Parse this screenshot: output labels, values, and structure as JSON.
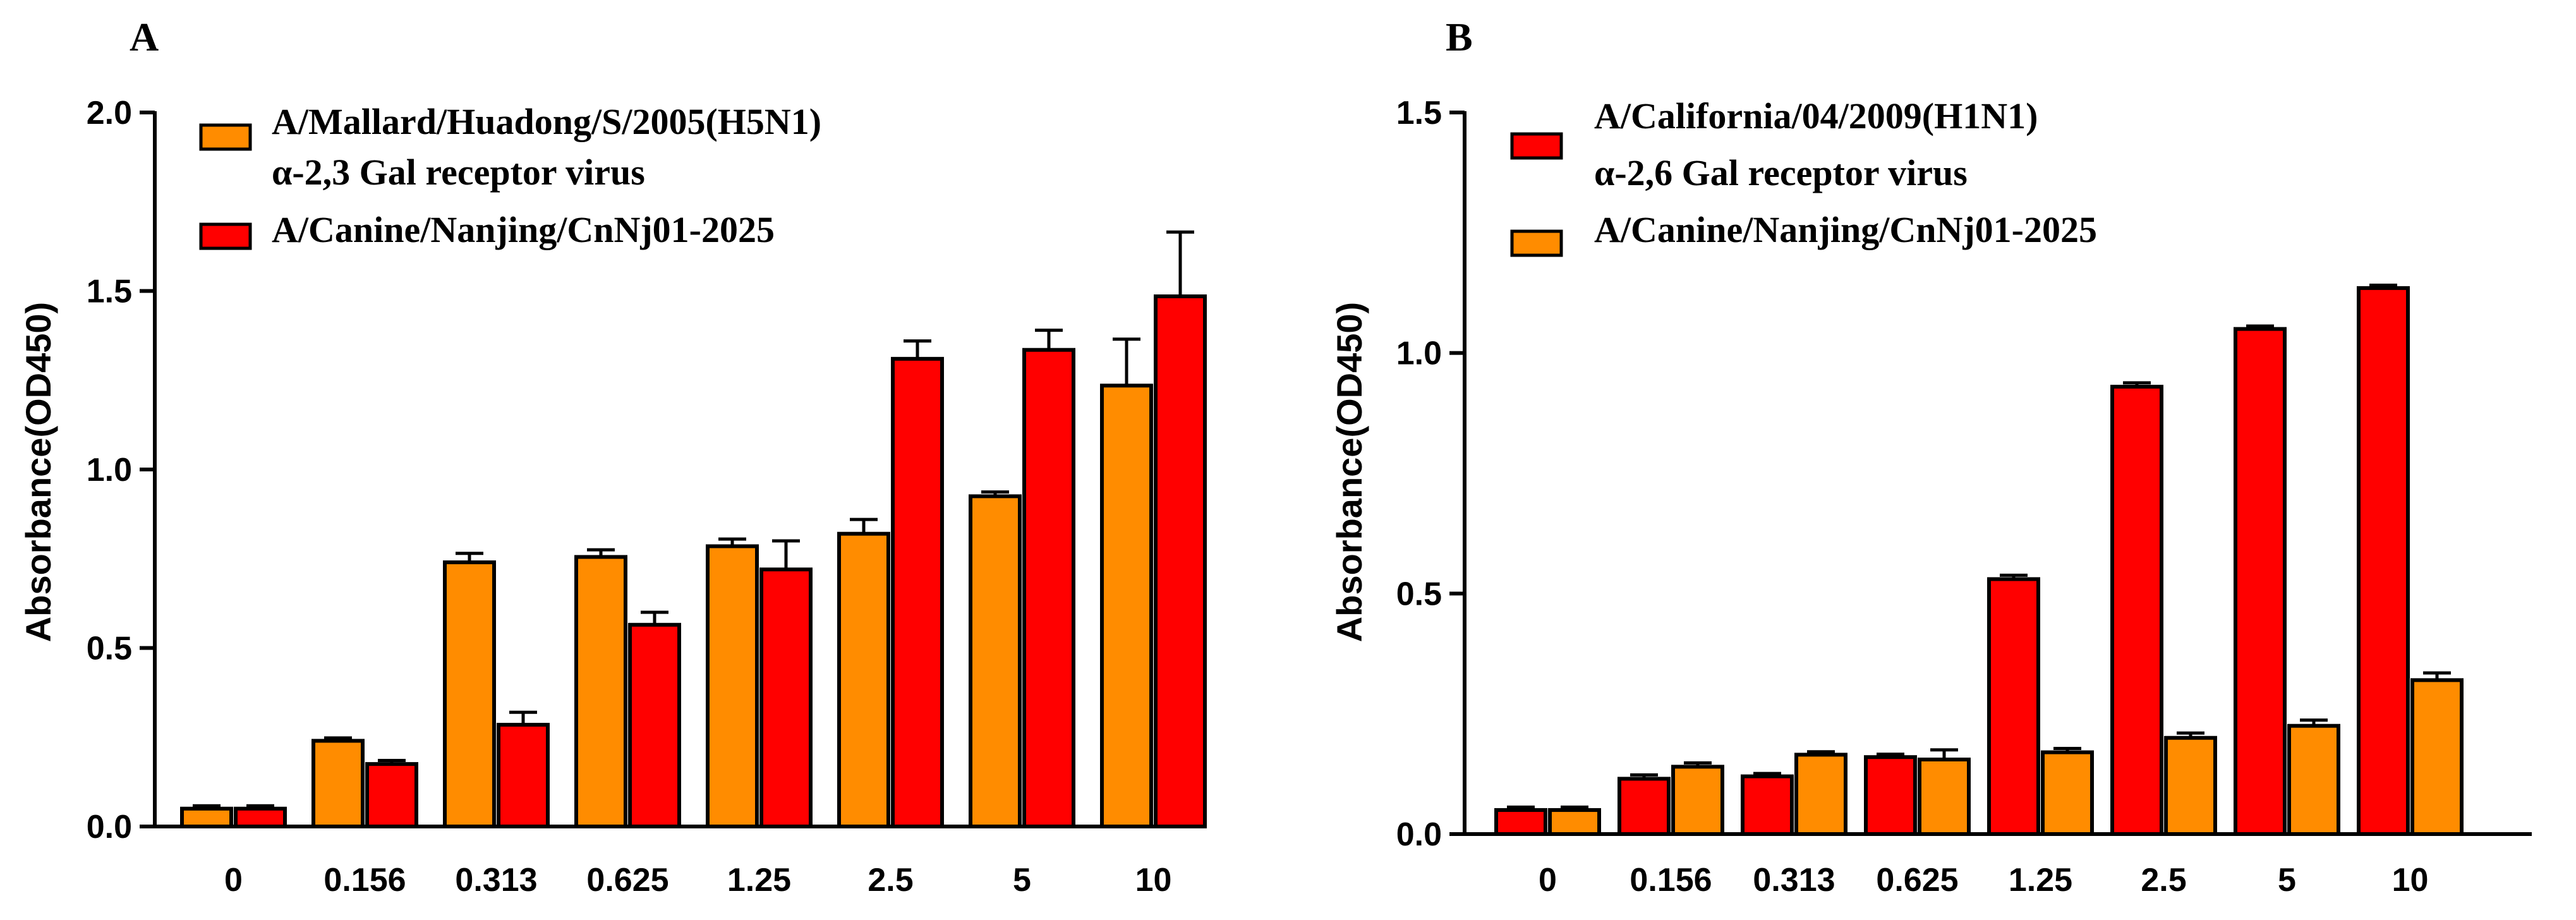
{
  "chart_data": [
    {
      "type": "bar",
      "panel_label": "A",
      "ylabel": "Absorbance(OD450)",
      "xlabel": "",
      "ylim": [
        0,
        2.0
      ],
      "yticks": [
        "0.0",
        "0.5",
        "1.0",
        "1.5",
        "2.0"
      ],
      "categories": [
        "0",
        "0.156",
        "0.313",
        "0.625",
        "1.25",
        "2.5",
        "5",
        "10"
      ],
      "legend_position": "top-left",
      "series": [
        {
          "name": "A/Mallard/Huadong/S/2005(H5N1)",
          "subtitle": "α-2,3 Gal receptor virus",
          "color": "#FF8C00",
          "values": [
            0.05,
            0.24,
            0.74,
            0.755,
            0.785,
            0.82,
            0.925,
            1.235
          ],
          "errors": [
            0.008,
            0.008,
            0.025,
            0.02,
            0.02,
            0.04,
            0.012,
            0.13
          ]
        },
        {
          "name": "A/Canine/Nanjing/CnNj01-2025",
          "subtitle": "",
          "color": "#FF0000",
          "values": [
            0.05,
            0.175,
            0.285,
            0.565,
            0.72,
            1.31,
            1.335,
            1.485
          ],
          "errors": [
            0.008,
            0.01,
            0.035,
            0.035,
            0.08,
            0.05,
            0.055,
            0.18
          ]
        }
      ]
    },
    {
      "type": "bar",
      "panel_label": "B",
      "ylabel": "Absorbance(OD450)",
      "xlabel": "",
      "ylim": [
        0,
        1.5
      ],
      "yticks": [
        "0.0",
        "0.5",
        "1.0",
        "1.5"
      ],
      "categories": [
        "0",
        "0.156",
        "0.313",
        "0.625",
        "1.25",
        "2.5",
        "5",
        "10"
      ],
      "legend_position": "top-left",
      "series": [
        {
          "name": "A/California/04/2009(H1N1)",
          "subtitle": "α-2,6 Gal receptor virus",
          "color": "#FF0000",
          "values": [
            0.05,
            0.115,
            0.12,
            0.16,
            0.53,
            0.93,
            1.05,
            1.135
          ],
          "errors": [
            0.006,
            0.008,
            0.006,
            0.006,
            0.008,
            0.008,
            0.006,
            0.006
          ]
        },
        {
          "name": "A/Canine/Nanjing/CnNj01-2025",
          "subtitle": "",
          "color": "#FF8C00",
          "values": [
            0.05,
            0.14,
            0.165,
            0.155,
            0.17,
            0.2,
            0.225,
            0.32
          ],
          "errors": [
            0.006,
            0.008,
            0.006,
            0.02,
            0.008,
            0.01,
            0.012,
            0.015
          ]
        }
      ]
    }
  ]
}
